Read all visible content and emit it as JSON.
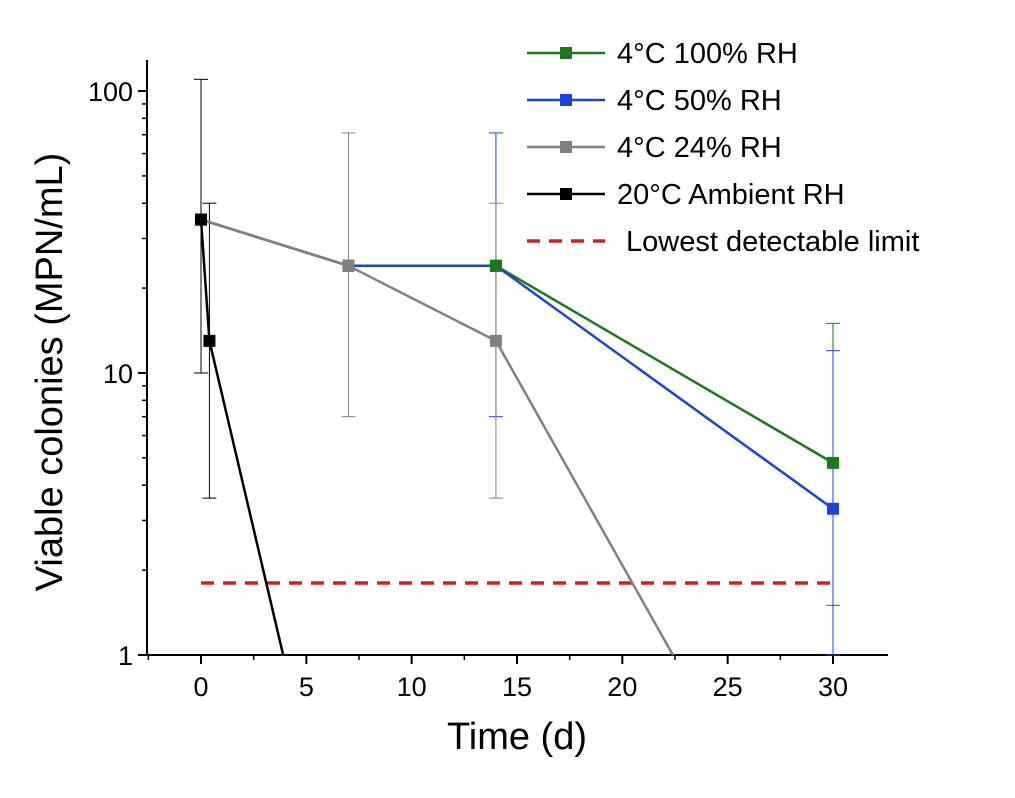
{
  "chart_data": {
    "type": "line",
    "xlabel": "Time (d)",
    "ylabel": "Viable colonies (MPN/mL)",
    "xlim": [
      -2.5,
      32.5
    ],
    "ylim": [
      1,
      130
    ],
    "yscale": "log",
    "grid": false,
    "legend_position": "top-right",
    "x_ticks": [
      "0",
      "5",
      "10",
      "15",
      "20",
      "25",
      "30"
    ],
    "y_ticks": [
      "1",
      "10",
      "100"
    ],
    "series": [
      {
        "name": "4°C 100% RH",
        "color": "#1a7a1a",
        "points": [
          {
            "x": 0,
            "y": 35
          },
          {
            "x": 7,
            "y": 24
          },
          {
            "x": 14,
            "y": 24
          },
          {
            "x": 30,
            "y": 4.8,
            "err_low": 1.5,
            "err_high": 15
          }
        ],
        "extends_to_floor": false
      },
      {
        "name": "4°C 50% RH",
        "color": "#1a44d8",
        "points": [
          {
            "x": 0,
            "y": 35
          },
          {
            "x": 7,
            "y": 24
          },
          {
            "x": 14,
            "y": 24,
            "err_low": 7,
            "err_high": 71
          },
          {
            "x": 30,
            "y": 3.3,
            "err_low": 1,
            "err_high": 12
          }
        ],
        "extends_to_floor": false
      },
      {
        "name": "4°C 24% RH",
        "color": "#808080",
        "points": [
          {
            "x": 0,
            "y": 35
          },
          {
            "x": 7,
            "y": 24,
            "err_low": 7,
            "err_high": 71
          },
          {
            "x": 14,
            "y": 13,
            "err_low": 3.6,
            "err_high": 40
          }
        ],
        "floor_x": 22.4,
        "extends_to_floor": true
      },
      {
        "name": "20°C Ambient RH",
        "color": "#000000",
        "points": [
          {
            "x": 0,
            "y": 35,
            "err_low": 10,
            "err_high": 110
          },
          {
            "x": 0.4,
            "y": 13,
            "err_low": 3.6,
            "err_high": 40
          }
        ],
        "floor_x": 3.9,
        "extends_to_floor": true
      }
    ],
    "reference_line": {
      "name": "Lowest detectable limit",
      "y": 1.8,
      "x_range": [
        0,
        30
      ],
      "color": "#d42020",
      "style": "dashed"
    }
  }
}
